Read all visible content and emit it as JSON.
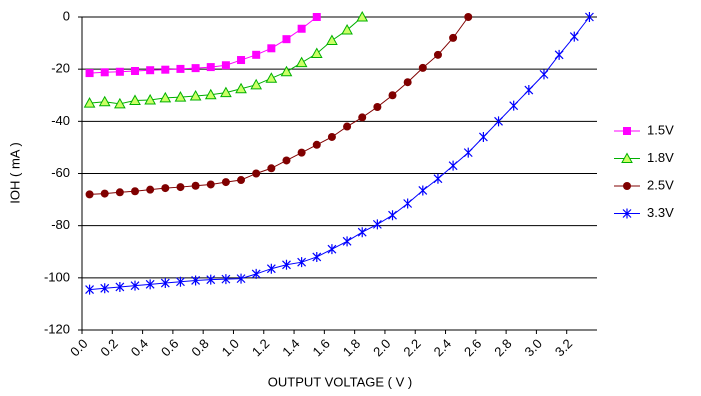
{
  "chart_data": {
    "type": "line",
    "xlabel": "OUTPUT VOLTAGE ( V )",
    "ylabel": "IOH ( mA )",
    "xlim": [
      0,
      3.4
    ],
    "ylim": [
      -120,
      0
    ],
    "xticks": [
      {
        "value": 0,
        "label": "0.0"
      },
      {
        "value": 0.2,
        "label": "0.2"
      },
      {
        "value": 0.4,
        "label": "0.4"
      },
      {
        "value": 0.6,
        "label": "0.6"
      },
      {
        "value": 0.8,
        "label": "0.8"
      },
      {
        "value": 1,
        "label": "1.0"
      },
      {
        "value": 1.2,
        "label": "1.2"
      },
      {
        "value": 1.4,
        "label": "1.4"
      },
      {
        "value": 1.6,
        "label": "1.6"
      },
      {
        "value": 1.8,
        "label": "1.8"
      },
      {
        "value": 2,
        "label": "2.0"
      },
      {
        "value": 2.2,
        "label": "2.2"
      },
      {
        "value": 2.4,
        "label": "2.4"
      },
      {
        "value": 2.6,
        "label": "2.6"
      },
      {
        "value": 2.8,
        "label": "2.8"
      },
      {
        "value": 3,
        "label": "3.0"
      },
      {
        "value": 3.2,
        "label": "3.2"
      }
    ],
    "yticks": [
      0,
      -20,
      -40,
      -60,
      -80,
      -100,
      -120
    ],
    "grid": true,
    "legend": "right",
    "series": [
      {
        "name": "1.5V",
        "color": "#ff00ff",
        "marker": "square",
        "x": [
          0.05,
          0.15,
          0.25,
          0.35,
          0.45,
          0.55,
          0.65,
          0.75,
          0.85,
          0.95,
          1.05,
          1.15,
          1.25,
          1.35,
          1.45,
          1.55
        ],
        "values": [
          -21.5,
          -21.2,
          -21,
          -20.7,
          -20.4,
          -20.2,
          -19.9,
          -19.6,
          -19.2,
          -18.5,
          -16.5,
          -14.5,
          -12,
          -8.5,
          -4.5,
          0
        ]
      },
      {
        "name": "1.8V",
        "color": "#00b000",
        "marker": "triangle",
        "x": [
          0.05,
          0.15,
          0.25,
          0.35,
          0.45,
          0.55,
          0.65,
          0.75,
          0.85,
          0.95,
          1.05,
          1.15,
          1.25,
          1.35,
          1.45,
          1.55,
          1.65,
          1.75,
          1.85
        ],
        "values": [
          -33,
          -32.5,
          -33.3,
          -32,
          -31.8,
          -31,
          -30.7,
          -30.3,
          -29.8,
          -29,
          -27.5,
          -26,
          -23.5,
          -21,
          -17.5,
          -14,
          -9,
          -5,
          0
        ]
      },
      {
        "name": "2.5V",
        "color": "#800000",
        "marker": "circle",
        "x": [
          0.05,
          0.15,
          0.25,
          0.35,
          0.45,
          0.55,
          0.65,
          0.75,
          0.85,
          0.95,
          1.05,
          1.15,
          1.25,
          1.35,
          1.45,
          1.55,
          1.65,
          1.75,
          1.85,
          1.95,
          2.05,
          2.15,
          2.25,
          2.35,
          2.45,
          2.55
        ],
        "values": [
          -68,
          -67.7,
          -67.2,
          -66.8,
          -66.2,
          -65.6,
          -65.2,
          -64.7,
          -64.2,
          -63.3,
          -62.5,
          -60,
          -58,
          -55,
          -52,
          -49,
          -46,
          -42,
          -38.5,
          -34.5,
          -30,
          -25,
          -19.5,
          -14.5,
          -8,
          0
        ]
      },
      {
        "name": "3.3V",
        "color": "#0000ff",
        "marker": "star",
        "x": [
          0.05,
          0.15,
          0.25,
          0.35,
          0.45,
          0.55,
          0.65,
          0.75,
          0.85,
          0.95,
          1.05,
          1.15,
          1.25,
          1.35,
          1.45,
          1.55,
          1.65,
          1.75,
          1.85,
          1.95,
          2.05,
          2.15,
          2.25,
          2.35,
          2.45,
          2.55,
          2.65,
          2.75,
          2.85,
          2.95,
          3.05,
          3.15,
          3.25,
          3.35
        ],
        "values": [
          -104.5,
          -104,
          -103.5,
          -103,
          -102.5,
          -102,
          -101.5,
          -101,
          -100.7,
          -100.5,
          -100.3,
          -98.5,
          -96.5,
          -95,
          -94,
          -92,
          -89,
          -86,
          -82.5,
          -79.5,
          -76,
          -71.5,
          -66.5,
          -62,
          -57,
          -52,
          -46,
          -40,
          -34,
          -28,
          -22,
          -14.5,
          -7.5,
          0
        ]
      }
    ]
  }
}
